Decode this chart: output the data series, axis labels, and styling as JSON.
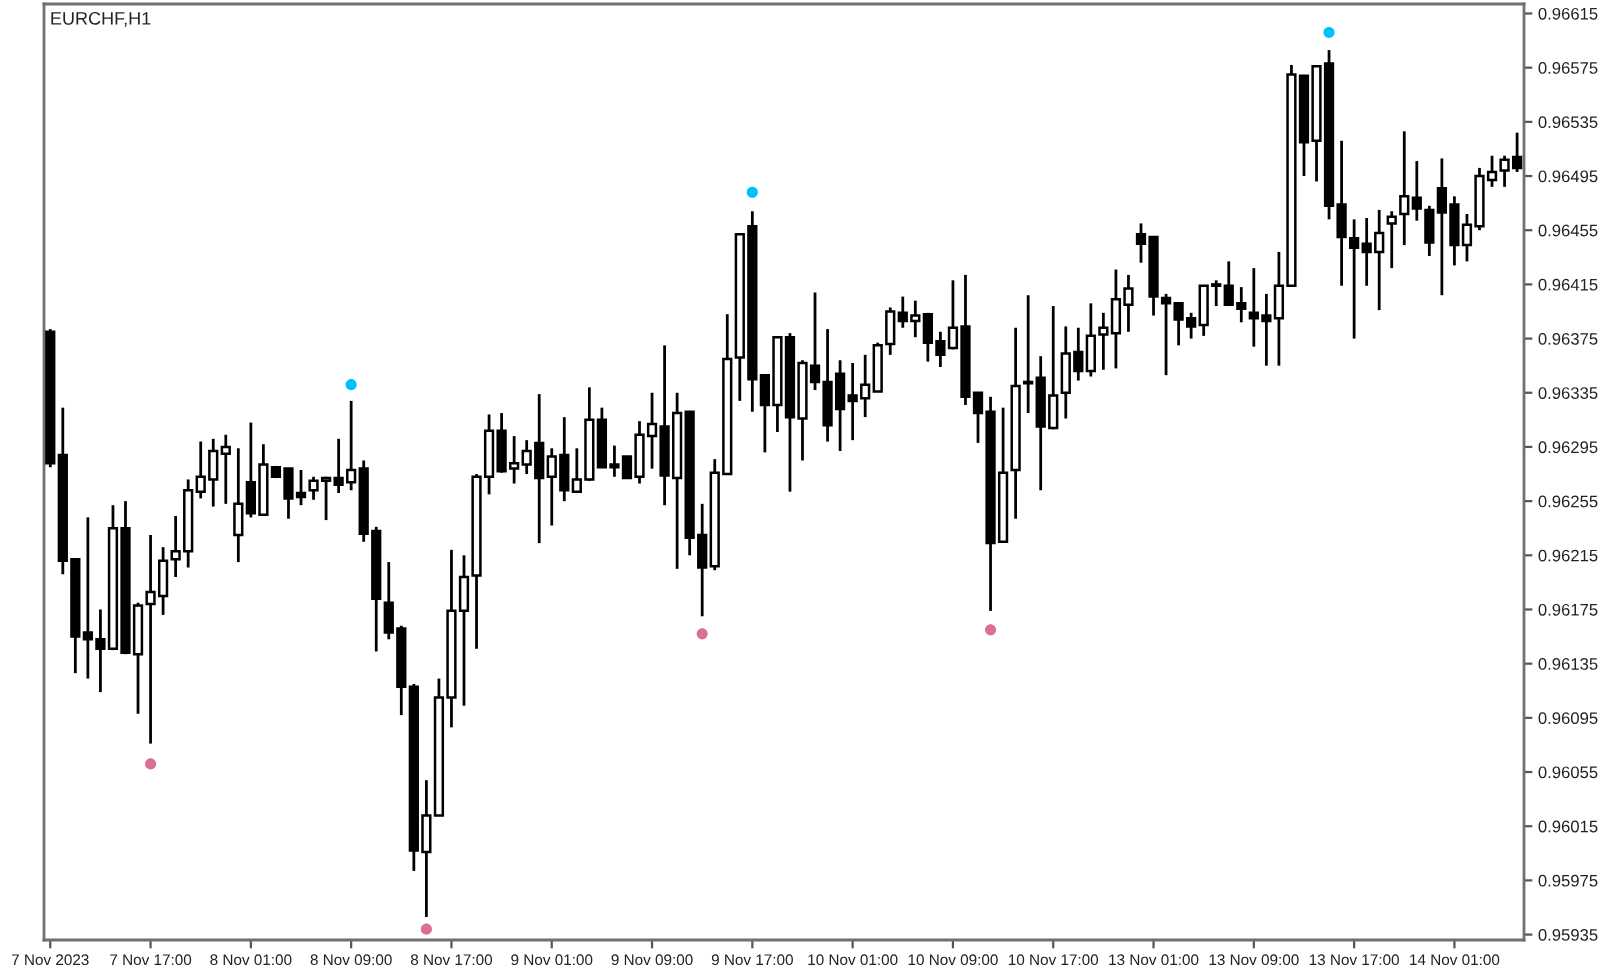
{
  "chart_data": {
    "type": "candlestick",
    "title": "EURCHF,H1",
    "color": "#000000",
    "categories": [
      "7 Nov 2023",
      null,
      null,
      null,
      null,
      null,
      null,
      null,
      "7 Nov 17:00",
      null,
      null,
      null,
      null,
      null,
      null,
      null,
      "8 Nov 01:00",
      null,
      null,
      null,
      null,
      null,
      null,
      null,
      "8 Nov 09:00",
      null,
      null,
      null,
      null,
      null,
      null,
      null,
      "8 Nov 17:00",
      null,
      null,
      null,
      null,
      null,
      null,
      null,
      "9 Nov 01:00",
      null,
      null,
      null,
      null,
      null,
      null,
      null,
      "9 Nov 09:00",
      null,
      null,
      null,
      null,
      null,
      null,
      null,
      "9 Nov 17:00",
      null,
      null,
      null,
      null,
      null,
      null,
      null,
      "10 Nov 01:00",
      null,
      null,
      null,
      null,
      null,
      null,
      null,
      "10 Nov 09:00",
      null,
      null,
      null,
      null,
      null,
      null,
      null,
      "10 Nov 17:00",
      null,
      null,
      null,
      null,
      null,
      null,
      null,
      "13 Nov 01:00",
      null,
      null,
      null,
      null,
      null,
      null,
      null,
      "13 Nov 09:00",
      null,
      null,
      null,
      null,
      null,
      null,
      null,
      "13 Nov 17:00",
      null,
      null,
      null,
      null,
      null,
      null,
      null,
      "14 Nov 01:00",
      null,
      null,
      null,
      null,
      null
    ],
    "ohlc": [
      [
        0.9638,
        0.96382,
        0.9628,
        0.96283
      ],
      [
        0.96289,
        0.96324,
        0.96201,
        0.96211
      ],
      [
        0.96212,
        0.96212,
        0.96128,
        0.96155
      ],
      [
        0.96158,
        0.96243,
        0.96124,
        0.96153
      ],
      [
        0.96153,
        0.96175,
        0.96114,
        0.96146
      ],
      [
        0.96146,
        0.96252,
        0.96145,
        0.96235
      ],
      [
        0.96235,
        0.96255,
        0.96142,
        0.96143
      ],
      [
        0.96142,
        0.9618,
        0.96098,
        0.96178
      ],
      [
        0.96179,
        0.9623,
        0.96076,
        0.96188
      ],
      [
        0.96185,
        0.96221,
        0.96171,
        0.96211
      ],
      [
        0.96212,
        0.96244,
        0.96199,
        0.96218
      ],
      [
        0.96218,
        0.96271,
        0.96206,
        0.96263
      ],
      [
        0.96262,
        0.96299,
        0.96257,
        0.96273
      ],
      [
        0.96271,
        0.96301,
        0.96251,
        0.96292
      ],
      [
        0.9629,
        0.96304,
        0.96253,
        0.96295
      ],
      [
        0.9623,
        0.96294,
        0.9621,
        0.96253
      ],
      [
        0.96269,
        0.96313,
        0.96243,
        0.96246
      ],
      [
        0.96245,
        0.96297,
        0.96244,
        0.96282
      ],
      [
        0.9628,
        0.96281,
        0.96272,
        0.96273
      ],
      [
        0.96279,
        0.96279,
        0.96242,
        0.96257
      ],
      [
        0.96261,
        0.96278,
        0.96252,
        0.96258
      ],
      [
        0.96263,
        0.96273,
        0.96256,
        0.9627
      ],
      [
        0.9627,
        0.96273,
        0.96241,
        0.96272
      ],
      [
        0.96272,
        0.96301,
        0.96261,
        0.96267
      ],
      [
        0.96269,
        0.96329,
        0.96263,
        0.96278
      ],
      [
        0.96279,
        0.96285,
        0.96225,
        0.96231
      ],
      [
        0.96233,
        0.96236,
        0.96144,
        0.96183
      ],
      [
        0.9618,
        0.9621,
        0.96153,
        0.96158
      ],
      [
        0.96161,
        0.96163,
        0.96097,
        0.96118
      ],
      [
        0.96118,
        0.9612,
        0.95982,
        0.95997
      ],
      [
        0.95996,
        0.96049,
        0.95948,
        0.96023
      ],
      [
        0.96023,
        0.96124,
        0.96023,
        0.9611
      ],
      [
        0.9611,
        0.96219,
        0.96088,
        0.96174
      ],
      [
        0.96174,
        0.96215,
        0.96104,
        0.96199
      ],
      [
        0.962,
        0.96275,
        0.96146,
        0.96273
      ],
      [
        0.96273,
        0.96319,
        0.9626,
        0.96307
      ],
      [
        0.96307,
        0.9632,
        0.96276,
        0.96277
      ],
      [
        0.96279,
        0.96303,
        0.96268,
        0.96283
      ],
      [
        0.96282,
        0.963,
        0.96275,
        0.96292
      ],
      [
        0.96298,
        0.96334,
        0.96224,
        0.96272
      ],
      [
        0.96273,
        0.96294,
        0.96237,
        0.96288
      ],
      [
        0.96289,
        0.96317,
        0.96255,
        0.96263
      ],
      [
        0.96262,
        0.96294,
        0.96261,
        0.96271
      ],
      [
        0.96271,
        0.96339,
        0.9627,
        0.96315
      ],
      [
        0.96315,
        0.96324,
        0.9628,
        0.9628
      ],
      [
        0.96282,
        0.96296,
        0.96273,
        0.9628
      ],
      [
        0.96288,
        0.96288,
        0.96272,
        0.96272
      ],
      [
        0.96273,
        0.96314,
        0.96268,
        0.96304
      ],
      [
        0.96303,
        0.96335,
        0.96279,
        0.96312
      ],
      [
        0.9631,
        0.9637,
        0.96252,
        0.96274
      ],
      [
        0.96272,
        0.96335,
        0.96205,
        0.9632
      ],
      [
        0.96321,
        0.96321,
        0.96215,
        0.96228
      ],
      [
        0.9623,
        0.96253,
        0.9617,
        0.96206
      ],
      [
        0.96207,
        0.96286,
        0.96204,
        0.96276
      ],
      [
        0.96275,
        0.96393,
        0.96275,
        0.9636
      ],
      [
        0.96361,
        0.96452,
        0.96329,
        0.96452
      ],
      [
        0.96458,
        0.96469,
        0.96321,
        0.96345
      ],
      [
        0.96348,
        0.96348,
        0.96291,
        0.96326
      ],
      [
        0.96326,
        0.96376,
        0.96306,
        0.96376
      ],
      [
        0.96376,
        0.96379,
        0.96262,
        0.96317
      ],
      [
        0.96316,
        0.96359,
        0.96285,
        0.96357
      ],
      [
        0.96355,
        0.96409,
        0.96337,
        0.96343
      ],
      [
        0.96343,
        0.96382,
        0.96299,
        0.96311
      ],
      [
        0.96349,
        0.96359,
        0.96292,
        0.96323
      ],
      [
        0.96333,
        0.96357,
        0.963,
        0.96329
      ],
      [
        0.96331,
        0.96363,
        0.96317,
        0.96341
      ],
      [
        0.96336,
        0.96372,
        0.96336,
        0.9637
      ],
      [
        0.96371,
        0.96398,
        0.96363,
        0.96395
      ],
      [
        0.96394,
        0.96406,
        0.96383,
        0.96388
      ],
      [
        0.96388,
        0.96403,
        0.96376,
        0.96392
      ],
      [
        0.96393,
        0.96394,
        0.96358,
        0.96372
      ],
      [
        0.96373,
        0.9638,
        0.96354,
        0.96363
      ],
      [
        0.96368,
        0.96418,
        0.96367,
        0.96383
      ],
      [
        0.96384,
        0.96422,
        0.96326,
        0.96332
      ],
      [
        0.96335,
        0.96335,
        0.96298,
        0.9632
      ],
      [
        0.96321,
        0.96332,
        0.96174,
        0.96224
      ],
      [
        0.96225,
        0.96324,
        0.96225,
        0.96276
      ],
      [
        0.96278,
        0.96383,
        0.96242,
        0.9634
      ],
      [
        0.96343,
        0.96407,
        0.9632,
        0.96342
      ],
      [
        0.96346,
        0.96362,
        0.96263,
        0.9631
      ],
      [
        0.96309,
        0.96399,
        0.96308,
        0.96333
      ],
      [
        0.96335,
        0.96384,
        0.96316,
        0.96364
      ],
      [
        0.96365,
        0.96383,
        0.96344,
        0.96351
      ],
      [
        0.96351,
        0.96401,
        0.96347,
        0.96377
      ],
      [
        0.96378,
        0.96394,
        0.96352,
        0.96383
      ],
      [
        0.96379,
        0.96426,
        0.96353,
        0.96404
      ],
      [
        0.964,
        0.96422,
        0.9638,
        0.96412
      ],
      [
        0.96452,
        0.9646,
        0.96431,
        0.96445
      ],
      [
        0.9645,
        0.9645,
        0.96392,
        0.96406
      ],
      [
        0.96405,
        0.96408,
        0.96348,
        0.96401
      ],
      [
        0.96401,
        0.96401,
        0.9637,
        0.96389
      ],
      [
        0.9639,
        0.96394,
        0.96375,
        0.96384
      ],
      [
        0.96385,
        0.96414,
        0.96377,
        0.96414
      ],
      [
        0.96415,
        0.96418,
        0.96399,
        0.96414
      ],
      [
        0.96414,
        0.96432,
        0.96399,
        0.964
      ],
      [
        0.96401,
        0.96413,
        0.96387,
        0.96397
      ],
      [
        0.96394,
        0.96427,
        0.96369,
        0.9639
      ],
      [
        0.96392,
        0.96408,
        0.96355,
        0.96388
      ],
      [
        0.9639,
        0.96439,
        0.96355,
        0.96414
      ],
      [
        0.96414,
        0.96577,
        0.96414,
        0.9657
      ],
      [
        0.96569,
        0.96569,
        0.96495,
        0.9652
      ],
      [
        0.96521,
        0.96576,
        0.96491,
        0.96576
      ],
      [
        0.96578,
        0.96588,
        0.96463,
        0.96473
      ],
      [
        0.96474,
        0.96521,
        0.96414,
        0.9645
      ],
      [
        0.96449,
        0.96463,
        0.96375,
        0.96442
      ],
      [
        0.96445,
        0.96464,
        0.96414,
        0.96439
      ],
      [
        0.96439,
        0.9647,
        0.96396,
        0.96453
      ],
      [
        0.9646,
        0.96469,
        0.96427,
        0.96465
      ],
      [
        0.96467,
        0.96528,
        0.96444,
        0.9648
      ],
      [
        0.96479,
        0.96506,
        0.96462,
        0.96471
      ],
      [
        0.9647,
        0.96473,
        0.96436,
        0.96446
      ],
      [
        0.96486,
        0.96508,
        0.96407,
        0.96468
      ],
      [
        0.96474,
        0.9648,
        0.96429,
        0.96444
      ],
      [
        0.96444,
        0.96467,
        0.96432,
        0.96459
      ],
      [
        0.96458,
        0.96501,
        0.96455,
        0.96495
      ],
      [
        0.96492,
        0.9651,
        0.96487,
        0.96498
      ],
      [
        0.96499,
        0.9651,
        0.96487,
        0.96507
      ],
      [
        0.96509,
        0.96527,
        0.96498,
        0.96501
      ]
    ],
    "series": [
      {
        "type": "scatter",
        "color": "#00bfff",
        "values": [
          null,
          null,
          null,
          null,
          null,
          null,
          null,
          null,
          null,
          null,
          null,
          null,
          null,
          null,
          null,
          null,
          null,
          null,
          null,
          null,
          null,
          null,
          null,
          null,
          0.96341,
          null,
          null,
          null,
          null,
          null,
          null,
          null,
          null,
          null,
          null,
          null,
          null,
          null,
          null,
          null,
          null,
          null,
          null,
          null,
          null,
          null,
          null,
          null,
          null,
          null,
          null,
          null,
          null,
          null,
          null,
          null,
          0.96483,
          null,
          null,
          null,
          null,
          null,
          null,
          null,
          null,
          null,
          null,
          null,
          null,
          null,
          null,
          null,
          null,
          null,
          null,
          null,
          null,
          null,
          null,
          null,
          null,
          null,
          null,
          null,
          null,
          null,
          null,
          null,
          null,
          null,
          null,
          null,
          null,
          null,
          null,
          null,
          null,
          null,
          null,
          null,
          null,
          null,
          0.96601,
          null,
          null,
          null,
          null,
          null,
          null,
          null,
          null,
          null,
          null,
          null,
          null,
          null,
          null,
          null
        ]
      },
      {
        "type": "scatter",
        "color": "#db7093",
        "values": [
          null,
          null,
          null,
          null,
          null,
          null,
          null,
          null,
          0.96061,
          null,
          null,
          null,
          null,
          null,
          null,
          null,
          null,
          null,
          null,
          null,
          null,
          null,
          null,
          null,
          null,
          null,
          null,
          null,
          null,
          null,
          0.95939,
          null,
          null,
          null,
          null,
          null,
          null,
          null,
          null,
          null,
          null,
          null,
          null,
          null,
          null,
          null,
          null,
          null,
          null,
          null,
          null,
          null,
          0.96157,
          null,
          null,
          null,
          null,
          null,
          null,
          null,
          null,
          null,
          null,
          null,
          null,
          null,
          null,
          null,
          null,
          null,
          null,
          null,
          null,
          null,
          null,
          0.9616,
          null,
          null,
          null,
          null,
          null,
          null,
          null,
          null,
          null,
          null,
          null,
          null,
          null,
          null,
          null,
          null,
          null,
          null,
          null,
          null,
          null,
          null,
          null,
          null,
          null,
          null,
          null,
          null,
          null,
          null,
          null,
          null,
          null,
          null,
          null,
          null,
          null,
          null,
          null,
          null,
          null,
          null
        ]
      }
    ],
    "marker": "circle",
    "ylim": [
      0.95931,
      0.96622
    ],
    "yticks": [
      0.95935,
      0.95975,
      0.96015,
      0.96055,
      0.96095,
      0.96135,
      0.96175,
      0.96215,
      0.96255,
      0.96295,
      0.96335,
      0.96375,
      0.96415,
      0.96455,
      0.96495,
      0.96535,
      0.96575,
      0.96615
    ]
  }
}
